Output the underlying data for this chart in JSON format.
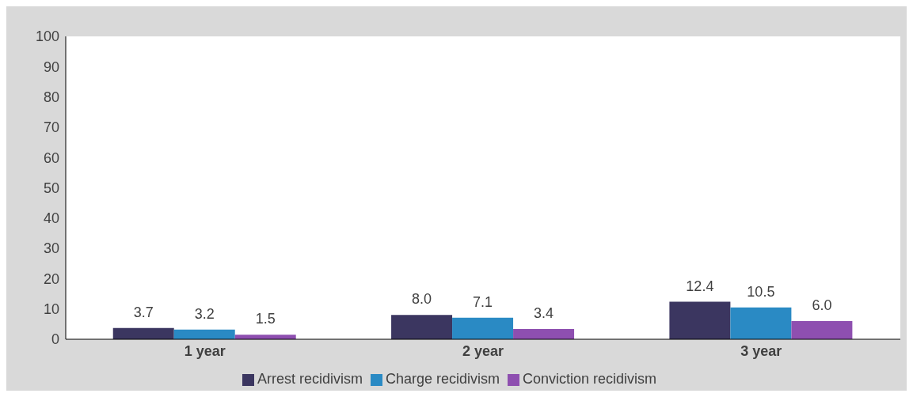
{
  "chart_data": {
    "type": "bar",
    "categories": [
      "1 year",
      "2 year",
      "3 year"
    ],
    "series": [
      {
        "name": "Arrest recidivism",
        "color": "#3b3660",
        "values": [
          3.7,
          8.0,
          12.4
        ],
        "value_labels": [
          "3.7",
          "8.0",
          "12.4"
        ]
      },
      {
        "name": "Charge recidivism",
        "color": "#2a8ac4",
        "values": [
          3.2,
          7.1,
          10.5
        ],
        "value_labels": [
          "3.2",
          "7.1",
          "10.5"
        ]
      },
      {
        "name": "Conviction recidivism",
        "color": "#8e4fb0",
        "values": [
          1.5,
          3.4,
          6.0
        ],
        "value_labels": [
          "1.5",
          "3.4",
          "6.0"
        ]
      }
    ],
    "ylim": [
      0,
      100
    ],
    "yticks": [
      0,
      10,
      20,
      30,
      40,
      50,
      60,
      70,
      80,
      90,
      100
    ],
    "grid": false,
    "legend": "bottom"
  }
}
